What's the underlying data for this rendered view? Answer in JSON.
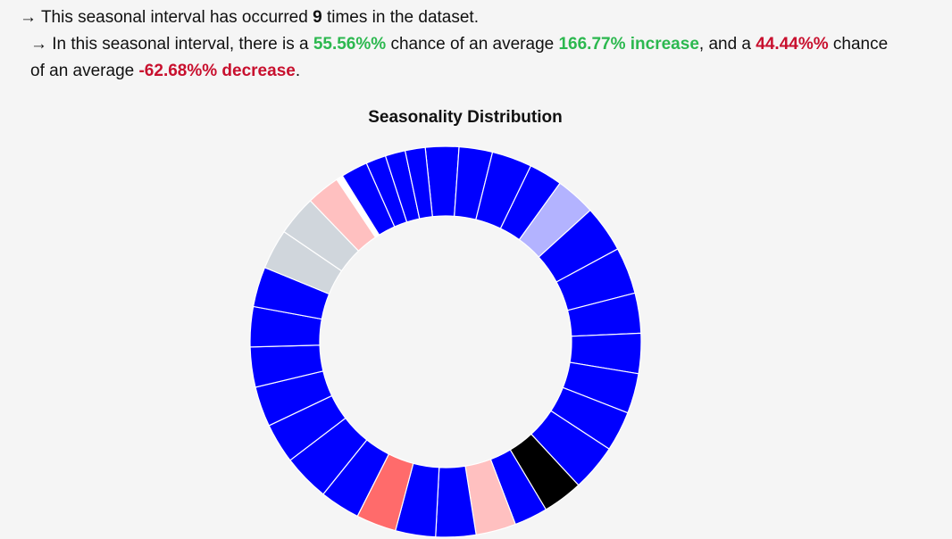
{
  "summary": {
    "arrow": "→",
    "line1_pre": "This seasonal interval has occurred",
    "line1_count": "9",
    "line1_post": "times in the dataset.",
    "line2_pre": "In this seasonal interval, there is a",
    "increase_chance": "55.56%%",
    "line2_mid1": "chance of an average",
    "increase_avg": "166.77% increase",
    "line2_mid2": ", and a",
    "decrease_chance": "44.44%%",
    "line2_post": "chance",
    "line3_pre": "of an average",
    "decrease_avg": "-62.68%% decrease",
    "line3_post": "."
  },
  "chart_data": {
    "type": "pie",
    "title": "Seasonality Distribution",
    "donut": true,
    "start_angle_deg": -6,
    "slice_values": [
      5,
      5,
      6,
      5,
      6,
      7,
      7,
      6,
      6,
      6,
      6,
      7,
      6,
      5,
      6,
      6,
      6,
      6,
      6,
      7,
      6,
      6,
      6,
      6,
      6,
      6,
      6,
      5,
      1,
      4,
      3,
      3,
      3
    ],
    "slice_colors": [
      "#0000ff",
      "#0000ff",
      "#0000ff",
      "#0000ff",
      "#b3b3ff",
      "#0000ff",
      "#0000ff",
      "#0000ff",
      "#0000ff",
      "#0000ff",
      "#0000ff",
      "#0000ff",
      "#000000",
      "#0000ff",
      "#ffc0c0",
      "#0000ff",
      "#0000ff",
      "#ff6b6b",
      "#0000ff",
      "#0000ff",
      "#0000ff",
      "#0000ff",
      "#0000ff",
      "#0000ff",
      "#0000ff",
      "#d0d6dc",
      "#d0d6dc",
      "#ffc0c0",
      "#ffffff",
      "#0000ff",
      "#0000ff",
      "#0000ff",
      "#0000ff"
    ],
    "slice_stroke": "#ffffff"
  }
}
